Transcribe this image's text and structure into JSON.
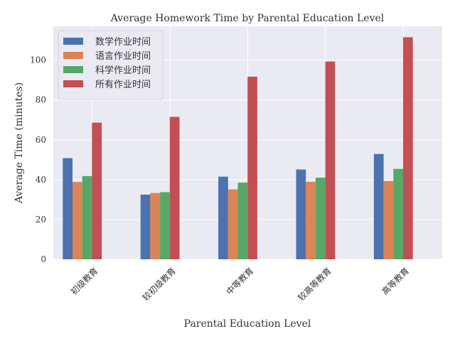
{
  "chart_data": {
    "type": "bar",
    "title": "Average Homework Time by Parental Education Level",
    "xlabel": "Parental Education Level",
    "ylabel": "Average Time (minutes)",
    "categories": [
      "初级教育",
      "较初级教育",
      "中等教育",
      "较高等教育",
      "高等教育"
    ],
    "series": [
      {
        "name": "数学作业时间",
        "color": "#4c72b0",
        "values": [
          50.8,
          32.5,
          41.5,
          45.1,
          52.9
        ]
      },
      {
        "name": "语言作业时间",
        "color": "#dd8452",
        "values": [
          38.8,
          33.3,
          35.1,
          38.9,
          39.3
        ]
      },
      {
        "name": "科学作业时间",
        "color": "#55a868",
        "values": [
          41.8,
          33.7,
          38.5,
          41.0,
          45.4
        ]
      },
      {
        "name": "所有作业时间",
        "color": "#c44e52",
        "values": [
          68.6,
          71.5,
          91.7,
          99.3,
          111.5
        ]
      }
    ],
    "ylim": [
      0,
      117
    ],
    "yticks": [
      0,
      20,
      40,
      60,
      80,
      100
    ],
    "grid": true,
    "legend_position": "top-left",
    "background": "#eaeaf2"
  }
}
